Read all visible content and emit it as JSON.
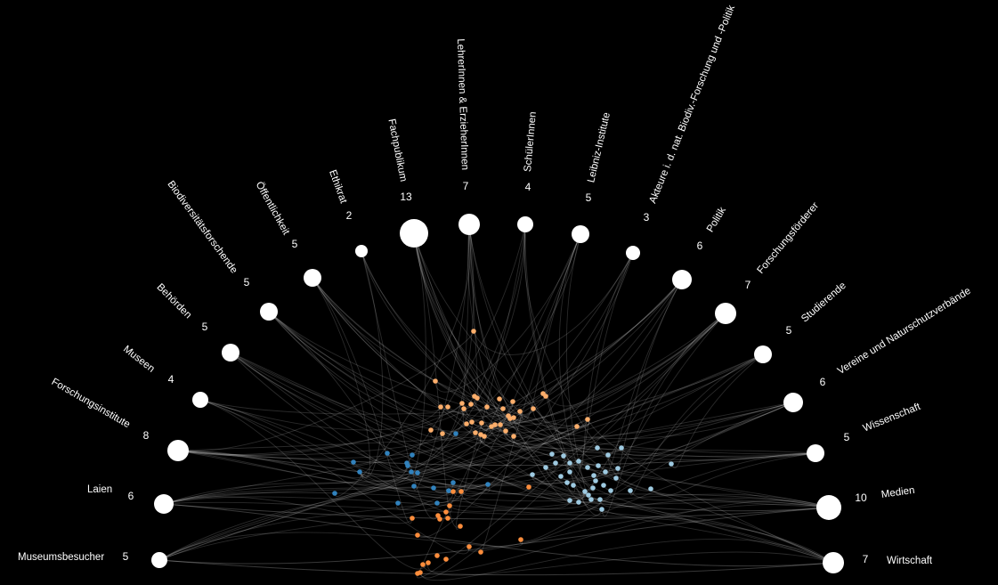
{
  "colors": {
    "background": "#000000",
    "node": "#ffffff",
    "link": "#ffffff",
    "cluster_peach": "#fdae6b",
    "cluster_orange": "#fd8d3c",
    "cluster_blue": "#3182bd",
    "cluster_lightblue": "#9ecae1"
  },
  "groups": [
    {
      "name": "Museumsbesucher",
      "count": "5"
    },
    {
      "name": "Laien",
      "count": "6"
    },
    {
      "name": "Forschungsinstitute",
      "count": "8"
    },
    {
      "name": "Museen",
      "count": "4"
    },
    {
      "name": "Behörden",
      "count": "5"
    },
    {
      "name": "Biodiversitätsforschende",
      "count": "5"
    },
    {
      "name": "Öffentlichkeit",
      "count": "5"
    },
    {
      "name": "Ethikrat",
      "count": "2"
    },
    {
      "name": "Fachpublikum",
      "count": "13"
    },
    {
      "name": "LehrerInnen & ErzieherInnen",
      "count": "7"
    },
    {
      "name": "SchülerInnen",
      "count": "4"
    },
    {
      "name": "Leibniz-Institute",
      "count": "5"
    },
    {
      "name": "Akteure i. d. nat. Biodiv.-Forschung und -Politik",
      "count": "3"
    },
    {
      "name": "Politik",
      "count": "6"
    },
    {
      "name": "Forschungsförderer",
      "count": "7"
    },
    {
      "name": "Studierende",
      "count": "5"
    },
    {
      "name": "Vereine und Naturschutzverbände",
      "count": "6"
    },
    {
      "name": "Wissenschaft",
      "count": "5"
    },
    {
      "name": "Medien",
      "count": "10"
    },
    {
      "name": "Wirtschaft",
      "count": "7"
    }
  ]
}
